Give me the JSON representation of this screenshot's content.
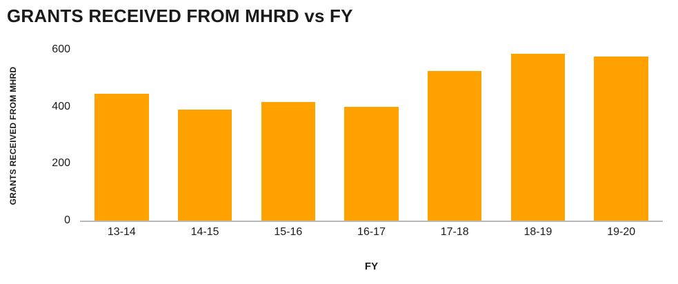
{
  "chart_data": {
    "type": "bar",
    "title": "GRANTS RECEIVED FROM MHRD vs FY",
    "categories": [
      "13-14",
      "14-15",
      "15-16",
      "16-17",
      "17-18",
      "18-19",
      "19-20"
    ],
    "values": [
      445,
      390,
      415,
      400,
      525,
      585,
      575
    ],
    "xlabel": "FY",
    "ylabel": "GRANTS RECEIVED FROM MHRD",
    "ylim": [
      0,
      600
    ],
    "yticks": [
      0,
      200,
      400,
      600
    ],
    "bar_color": "#FFA200",
    "axis_line_color": "#b9b9b9",
    "text_color": "#1a1a1a",
    "grid": false,
    "legend": false
  }
}
